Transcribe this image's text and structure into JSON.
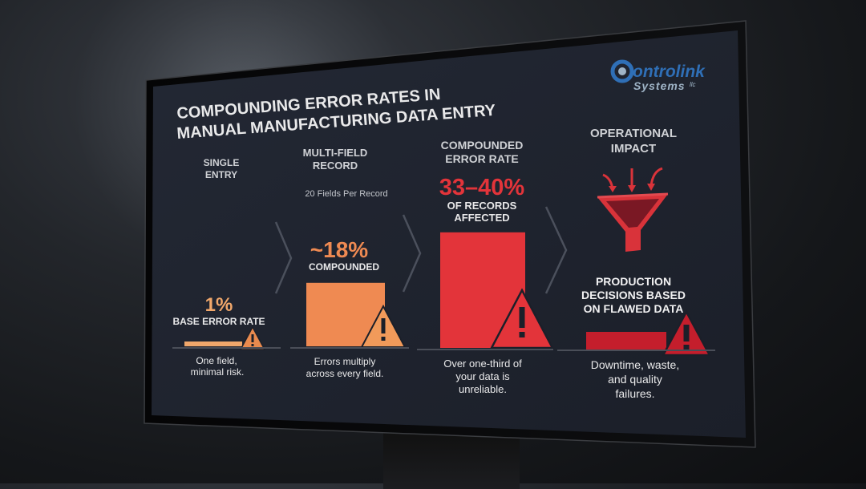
{
  "brand": {
    "logo_line1": "ontrolink",
    "logo_line2": "Systems",
    "logo_suffix": "llc"
  },
  "title_line1": "COMPOUNDING ERROR RATES IN",
  "title_line2": "MANUAL MANUFACTURING DATA ENTRY",
  "stages": [
    {
      "heading": [
        "SINGLE",
        "ENTRY"
      ],
      "subheading": "",
      "value_label": "1%",
      "value_caption": [
        "BASE ERROR RATE"
      ],
      "caption": [
        "One field,",
        "minimal risk."
      ]
    },
    {
      "heading": [
        "MULTI-FIELD",
        "RECORD"
      ],
      "subheading": "20 Fields Per Record",
      "value_label": "~18%",
      "value_caption": [
        "COMPOUNDED"
      ],
      "caption": [
        "Errors multiply",
        "across every field."
      ]
    },
    {
      "heading": [
        "COMPOUNDED",
        "ERROR RATE"
      ],
      "subheading": "",
      "value_label": "33–40%",
      "value_caption": [
        "OF RECORDS",
        "AFFECTED"
      ],
      "caption": [
        "Over one-third of",
        "your data is",
        "unreliable."
      ]
    },
    {
      "heading": [
        "OPERATIONAL",
        "IMPACT"
      ],
      "subheading": "",
      "value_label": "",
      "value_caption": [
        "PRODUCTION",
        "DECISIONS BASED",
        "ON FLAWED DATA"
      ],
      "caption": [
        "Downtime, waste,",
        "and quality",
        "failures."
      ]
    }
  ],
  "colors": {
    "stage1": "#f0a76b",
    "stage2": "#ef8a52",
    "stage3": "#e3343a",
    "stage4": "#c41e2c",
    "screen": "#1f2430",
    "funnel": "#d9333a"
  },
  "chart_data": {
    "type": "bar",
    "categories": [
      "SINGLE ENTRY",
      "MULTI-FIELD RECORD",
      "COMPOUNDED ERROR RATE"
    ],
    "values": [
      1,
      18,
      36.5
    ],
    "value_labels": [
      "1%",
      "~18%",
      "33–40%"
    ],
    "value_ranges": [
      [
        1,
        1
      ],
      [
        18,
        18
      ],
      [
        33,
        40
      ]
    ],
    "unit": "%",
    "title": "COMPOUNDING ERROR RATES IN MANUAL MANUFACTURING DATA ENTRY",
    "xlabel": "",
    "ylabel": "",
    "ylim": [
      0,
      40
    ],
    "grid": false,
    "legend": "none"
  }
}
